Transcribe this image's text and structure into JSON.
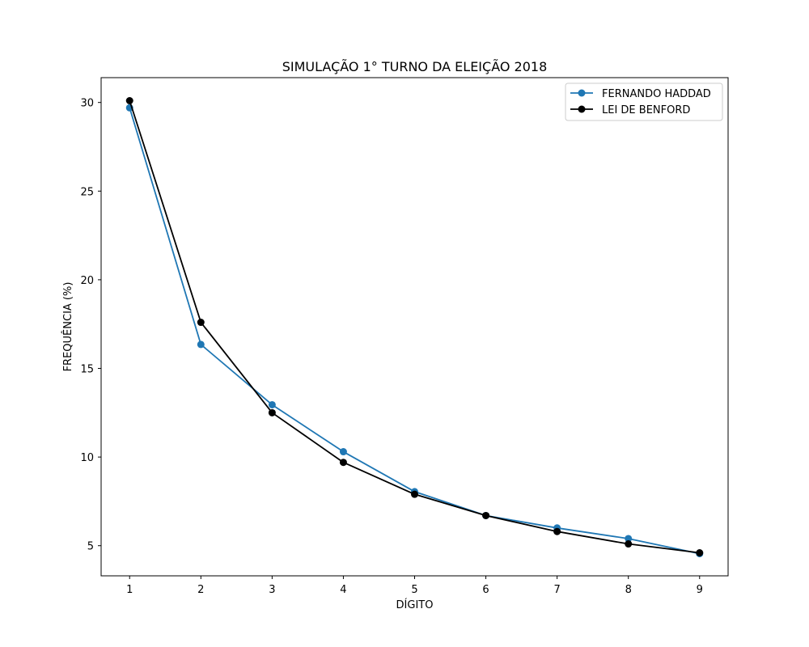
{
  "chart_data": {
    "type": "line",
    "title": "SIMULAÇÃO 1° TURNO DA ELEIÇÃO 2018",
    "xlabel": "DÍGITO",
    "ylabel": "FREQUÊNCIA (%)",
    "x": [
      1,
      2,
      3,
      4,
      5,
      6,
      7,
      8,
      9
    ],
    "xlim": [
      0.6,
      9.4
    ],
    "ylim": [
      3.3,
      31.4
    ],
    "xticks": [
      1,
      2,
      3,
      4,
      5,
      6,
      7,
      8,
      9
    ],
    "yticks": [
      5,
      10,
      15,
      20,
      25,
      30
    ],
    "grid": false,
    "legend_position": "top-right",
    "series": [
      {
        "name": "FERNANDO HADDAD",
        "color": "#1f77b4",
        "marker": "circle",
        "values": [
          29.7,
          16.35,
          12.95,
          10.3,
          8.05,
          6.7,
          6.0,
          5.4,
          4.55
        ]
      },
      {
        "name": "LEI DE BENFORD",
        "color": "#000000",
        "marker": "circle",
        "values": [
          30.1,
          17.6,
          12.5,
          9.7,
          7.9,
          6.7,
          5.8,
          5.1,
          4.6
        ]
      }
    ]
  }
}
